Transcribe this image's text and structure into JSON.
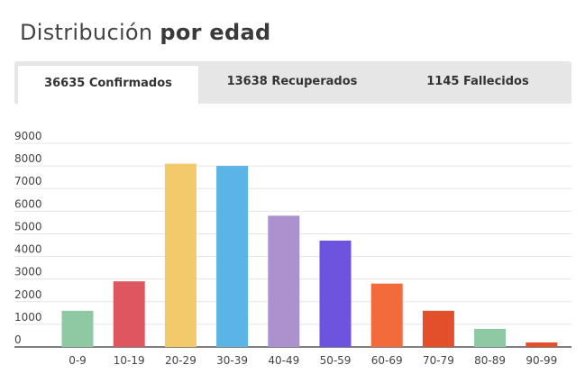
{
  "header": {
    "title_regular": "Distribución",
    "title_bold": "por edad"
  },
  "tabs": [
    {
      "label": "36635 Confirmados",
      "active": true
    },
    {
      "label": "13638 Recuperados",
      "active": false
    },
    {
      "label": "1145 Fallecidos",
      "active": false
    }
  ],
  "chart_data": {
    "type": "bar",
    "title": "",
    "xlabel": "",
    "ylabel": "",
    "ylim": [
      0,
      9000
    ],
    "yticks": [
      0,
      1000,
      2000,
      3000,
      4000,
      5000,
      6000,
      7000,
      8000,
      9000
    ],
    "grid": true,
    "categories": [
      "0-9",
      "10-19",
      "20-29",
      "30-39",
      "40-49",
      "50-59",
      "60-69",
      "70-79",
      "80-89",
      "90-99"
    ],
    "values": [
      1600,
      2900,
      8100,
      8000,
      5800,
      4700,
      2800,
      1600,
      800,
      200
    ],
    "colors": [
      "#8fc9a3",
      "#de5760",
      "#f2c96b",
      "#5ab4e5",
      "#ad91cf",
      "#6d53de",
      "#f36a3b",
      "#e2502b",
      "#8fc9a3",
      "#e2502b"
    ]
  }
}
